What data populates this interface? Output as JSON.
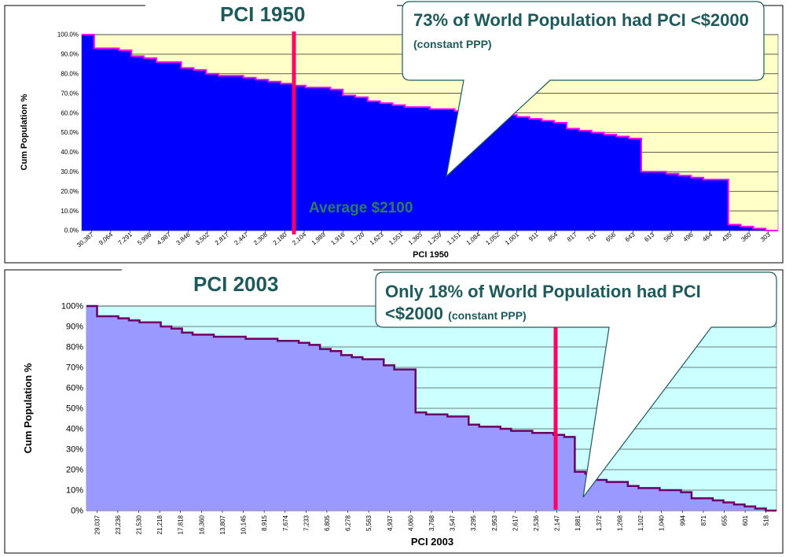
{
  "titles": {
    "top": "PCI 1950",
    "bottom": "PCI 2003"
  },
  "callouts": {
    "top_main": "73% of World Population had PCI <$2000",
    "top_small": "(constant PPP)",
    "bottom_main": "Only 18% of  World Population had PCI <$2000",
    "bottom_small": "(constant PPP)"
  },
  "annotation_avg": "Average $2100",
  "colors": {
    "top_fill": "#0000ff",
    "top_line": "#ff00ff",
    "top_bg": "#ffffc8",
    "bottom_fill": "#9999ff",
    "bottom_line": "#660066",
    "bottom_bg": "#ccffff",
    "marker": "#ff0066",
    "text": "#1f5a5a"
  },
  "chart_data": [
    {
      "type": "area",
      "title": "",
      "xlabel": "PCI 1950",
      "ylabel": "Cum Population %",
      "ylim": [
        0,
        100
      ],
      "yticks": [
        "0.0%",
        "10.0%",
        "20.0%",
        "30.0%",
        "40.0%",
        "50.0%",
        "60.0%",
        "70.0%",
        "80.0%",
        "90.0%",
        "100.0%"
      ],
      "xticks": [
        "30,387",
        "9,064",
        "7,291",
        "5,996",
        "4,987",
        "3,846",
        "3,502",
        "2,817",
        "2,447",
        "2,308",
        "2,180",
        "2,104",
        "1,989",
        "1,916",
        "1,720",
        "1,623",
        "1,551",
        "1,365",
        "1,259",
        "1,151",
        "1,084",
        "1,052",
        "1,001",
        "911",
        "854",
        "817",
        "761",
        "656",
        "643",
        "613",
        "560",
        "496",
        "464",
        "435",
        "360",
        "303"
      ],
      "series": [
        {
          "values": [
            100,
            93,
            93,
            92,
            89,
            88,
            86,
            86,
            83,
            82,
            80,
            79,
            79,
            78,
            77,
            76,
            75,
            74,
            73,
            73,
            72,
            69,
            68,
            66,
            65,
            64,
            63,
            63,
            62,
            62,
            61,
            61,
            60,
            60,
            59,
            58,
            57,
            56,
            55,
            52,
            51,
            50,
            49,
            48,
            47,
            30,
            30,
            29,
            28,
            27,
            26,
            26,
            3,
            2,
            1,
            0
          ]
        }
      ],
      "marker_label": "Average $2100",
      "grid": true
    },
    {
      "type": "area",
      "title": "",
      "xlabel": "PCI 2003",
      "ylabel": "Cum Population %",
      "ylim": [
        0,
        100
      ],
      "yticks": [
        "0%",
        "10%",
        "20%",
        "30%",
        "40%",
        "50%",
        "60%",
        "70%",
        "80%",
        "90%",
        "100%"
      ],
      "xticks": [
        "29,037",
        "23,236",
        "21,530",
        "21,218",
        "17,818",
        "16,360",
        "13,807",
        "10,145",
        "8,915",
        "7,674",
        "7,233",
        "6,805",
        "6,278",
        "5,563",
        "4,937",
        "4,060",
        "3,768",
        "3,547",
        "3,295",
        "2,953",
        "2,617",
        "2,536",
        "2,147",
        "1,881",
        "1,372",
        "1,268",
        "1,102",
        "1,040",
        "994",
        "871",
        "655",
        "601",
        "518"
      ],
      "series": [
        {
          "values": [
            100,
            95,
            95,
            94,
            93,
            92,
            92,
            90,
            89,
            87,
            86,
            86,
            85,
            85,
            85,
            84,
            84,
            84,
            83,
            83,
            82,
            81,
            79,
            78,
            76,
            75,
            74,
            74,
            71,
            69,
            69,
            48,
            47,
            47,
            46,
            46,
            42,
            41,
            41,
            40,
            39,
            39,
            38,
            38,
            37,
            36,
            19,
            18,
            15,
            14,
            14,
            12,
            11,
            11,
            10,
            10,
            9,
            6,
            6,
            5,
            4,
            3,
            2,
            1,
            0
          ]
        }
      ],
      "grid": true
    }
  ]
}
